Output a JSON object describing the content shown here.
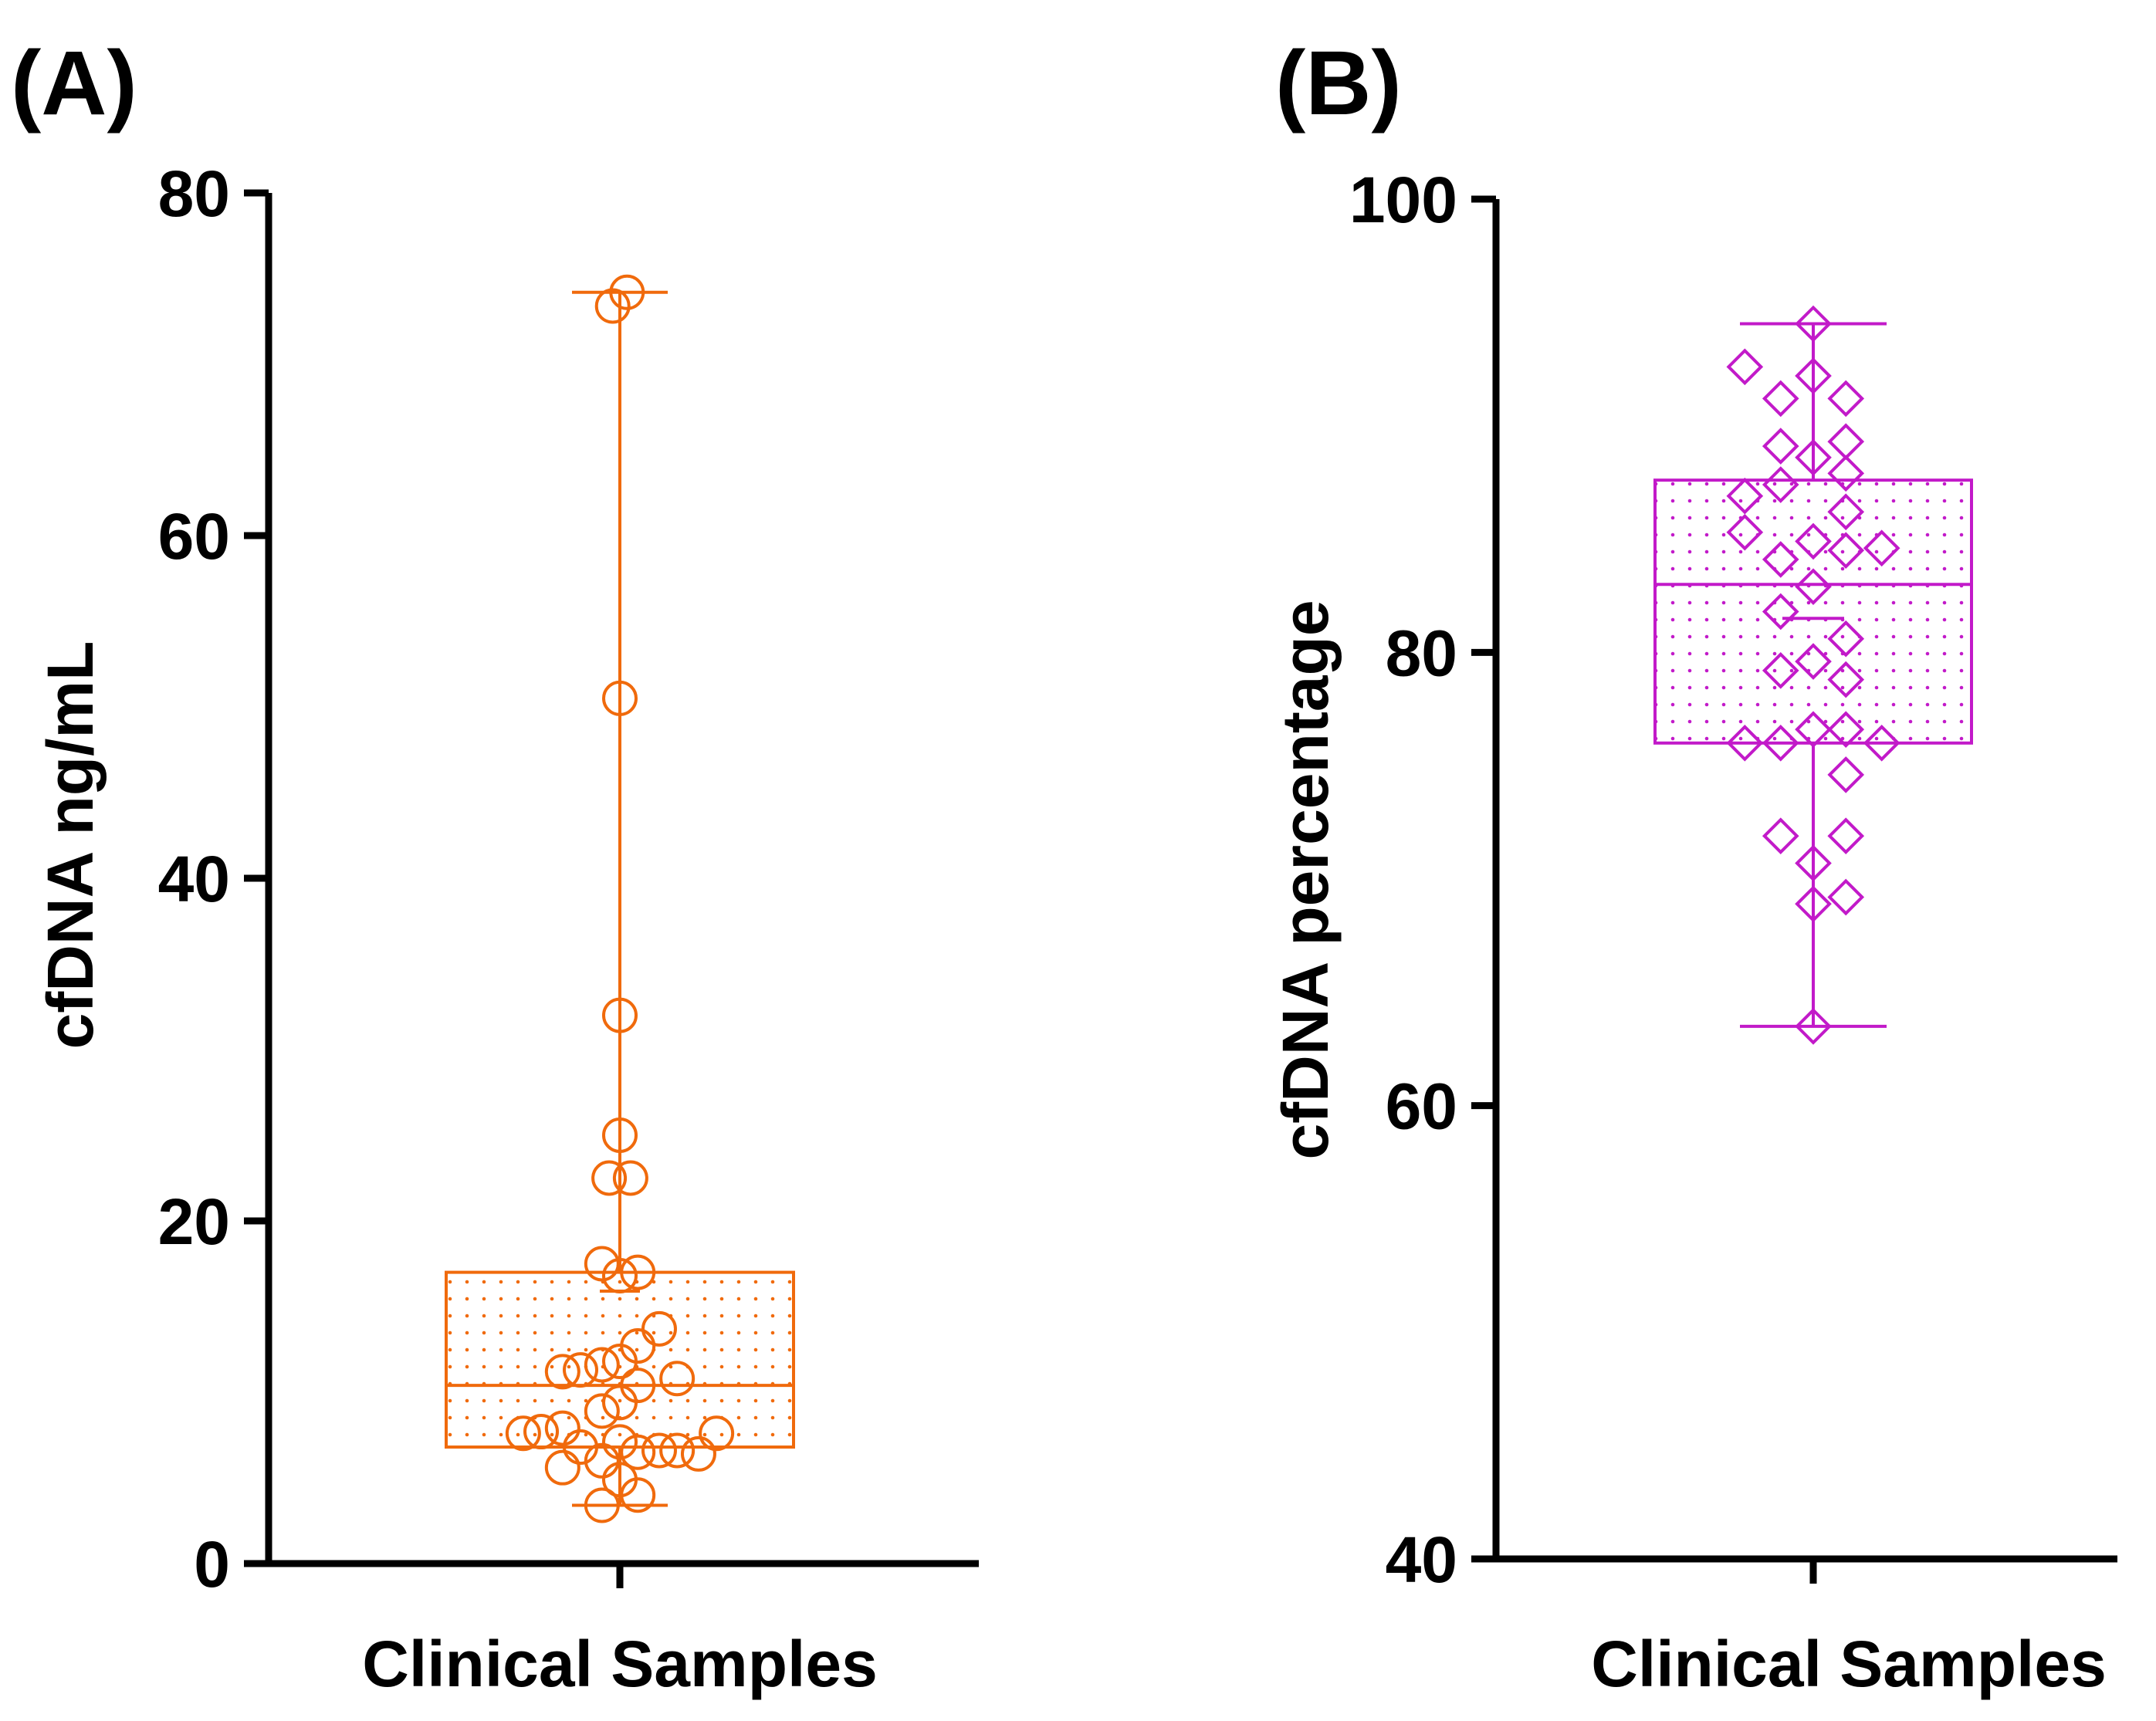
{
  "chart_data": [
    {
      "type": "box",
      "panel_label": "(A)",
      "title": "",
      "ylabel": "cfDNA ng/mL",
      "xlabel": "Clinical Samples",
      "ylim": [
        0,
        80
      ],
      "yticks": [
        0,
        20,
        40,
        60,
        80
      ],
      "color": "#f06a0c",
      "marker": "circle",
      "box": {
        "whisker_low": 3.4,
        "q1": 6.8,
        "median": 10.4,
        "q3": 17.0,
        "whisker_high": 74.2,
        "mean": 15.9
      },
      "points": [
        {
          "dx": 0.02,
          "y": 74.2
        },
        {
          "dx": -0.02,
          "y": 73.4
        },
        {
          "dx": 0.0,
          "y": 50.5
        },
        {
          "dx": 0.0,
          "y": 32.0
        },
        {
          "dx": 0.0,
          "y": 25.0
        },
        {
          "dx": -0.03,
          "y": 22.5
        },
        {
          "dx": 0.03,
          "y": 22.5
        },
        {
          "dx": -0.05,
          "y": 17.5
        },
        {
          "dx": 0.0,
          "y": 16.8
        },
        {
          "dx": 0.05,
          "y": 17.0
        },
        {
          "dx": 0.11,
          "y": 13.7
        },
        {
          "dx": 0.05,
          "y": 12.7
        },
        {
          "dx": -0.16,
          "y": 11.2
        },
        {
          "dx": -0.11,
          "y": 11.3
        },
        {
          "dx": -0.05,
          "y": 11.6
        },
        {
          "dx": 0.0,
          "y": 11.8
        },
        {
          "dx": 0.16,
          "y": 10.8
        },
        {
          "dx": 0.05,
          "y": 10.4
        },
        {
          "dx": 0.0,
          "y": 9.4
        },
        {
          "dx": -0.05,
          "y": 8.9
        },
        {
          "dx": -0.27,
          "y": 7.6
        },
        {
          "dx": -0.22,
          "y": 7.7
        },
        {
          "dx": -0.16,
          "y": 7.9
        },
        {
          "dx": 0.27,
          "y": 7.6
        },
        {
          "dx": 0.0,
          "y": 7.1
        },
        {
          "dx": -0.11,
          "y": 6.8
        },
        {
          "dx": -0.05,
          "y": 6.0
        },
        {
          "dx": 0.05,
          "y": 6.5
        },
        {
          "dx": 0.11,
          "y": 6.6
        },
        {
          "dx": 0.16,
          "y": 6.6
        },
        {
          "dx": 0.22,
          "y": 6.4
        },
        {
          "dx": -0.16,
          "y": 5.6
        },
        {
          "dx": 0.0,
          "y": 4.9
        },
        {
          "dx": 0.05,
          "y": 4.0
        },
        {
          "dx": -0.05,
          "y": 3.4
        }
      ]
    },
    {
      "type": "box",
      "panel_label": "(B)",
      "title": "",
      "ylabel": "cfDNA percentage",
      "xlabel": "Clinical Samples",
      "ylim": [
        40,
        100
      ],
      "yticks": [
        40,
        60,
        80,
        100
      ],
      "color": "#c21ac9",
      "marker": "diamond",
      "box": {
        "whisker_low": 63.5,
        "q1": 76.0,
        "median": 83.0,
        "q3": 87.6,
        "whisker_high": 94.5,
        "mean": 81.5
      },
      "points": [
        {
          "dx": 0.0,
          "y": 94.5
        },
        {
          "dx": -0.21,
          "y": 92.6
        },
        {
          "dx": 0.0,
          "y": 92.2
        },
        {
          "dx": -0.1,
          "y": 91.2
        },
        {
          "dx": 0.1,
          "y": 91.2
        },
        {
          "dx": -0.1,
          "y": 89.1
        },
        {
          "dx": 0.1,
          "y": 89.3
        },
        {
          "dx": 0.0,
          "y": 88.6
        },
        {
          "dx": 0.1,
          "y": 87.9
        },
        {
          "dx": -0.21,
          "y": 86.9
        },
        {
          "dx": -0.1,
          "y": 87.4
        },
        {
          "dx": 0.1,
          "y": 86.2
        },
        {
          "dx": -0.21,
          "y": 85.3
        },
        {
          "dx": 0.0,
          "y": 84.9
        },
        {
          "dx": 0.1,
          "y": 84.5
        },
        {
          "dx": 0.21,
          "y": 84.6
        },
        {
          "dx": -0.1,
          "y": 84.1
        },
        {
          "dx": 0.0,
          "y": 82.9
        },
        {
          "dx": -0.1,
          "y": 81.8
        },
        {
          "dx": 0.1,
          "y": 80.6
        },
        {
          "dx": 0.0,
          "y": 79.6
        },
        {
          "dx": -0.1,
          "y": 79.2
        },
        {
          "dx": 0.1,
          "y": 78.8
        },
        {
          "dx": 0.0,
          "y": 76.6
        },
        {
          "dx": 0.1,
          "y": 76.6
        },
        {
          "dx": -0.21,
          "y": 76.0
        },
        {
          "dx": -0.1,
          "y": 76.0
        },
        {
          "dx": 0.21,
          "y": 76.0
        },
        {
          "dx": 0.1,
          "y": 74.6
        },
        {
          "dx": -0.1,
          "y": 71.9
        },
        {
          "dx": 0.1,
          "y": 71.9
        },
        {
          "dx": 0.0,
          "y": 70.7
        },
        {
          "dx": 0.1,
          "y": 69.2
        },
        {
          "dx": 0.0,
          "y": 68.9
        },
        {
          "dx": 0.0,
          "y": 63.5
        }
      ]
    }
  ]
}
